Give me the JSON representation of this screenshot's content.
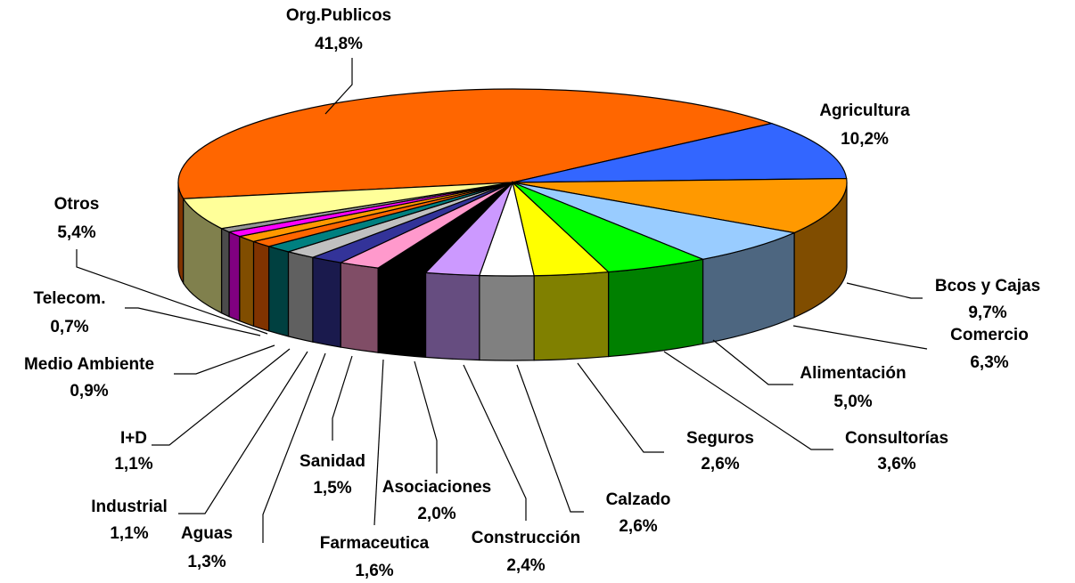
{
  "chart_data": {
    "type": "pie3d",
    "categories": [
      "Org.Publicos",
      "Agricultura",
      "Bcos y Cajas",
      "Comercio",
      "Alimentación",
      "Consultorías",
      "Seguros",
      "Calzado",
      "Construcción",
      "Asociaciones",
      "Farmaceutica",
      "Sanidad",
      "Aguas",
      "Industrial",
      "I+D",
      "Medio Ambiente",
      "Telecom.",
      "Otros"
    ],
    "values": [
      41.8,
      10.2,
      9.7,
      6.3,
      5.0,
      3.6,
      2.6,
      2.6,
      2.4,
      2.0,
      1.6,
      1.5,
      1.3,
      1.1,
      1.1,
      0.9,
      0.7,
      5.4
    ],
    "value_labels": [
      "41,8%",
      "10,2%",
      "9,7%",
      "6,3%",
      "5,0%",
      "3,6%",
      "2,6%",
      "2,6%",
      "2,4%",
      "2,0%",
      "1,6%",
      "1,5%",
      "1,3%",
      "1,1%",
      "1,1%",
      "0,9%",
      "0,7%",
      "5,4%"
    ],
    "colors": [
      "#FF6600",
      "#3366FF",
      "#FF9900",
      "#99CCFF",
      "#00FF00",
      "#FFFF00",
      "#FFFFFF",
      "#CC99FF",
      "#000000",
      "#FF99CC",
      "#333399",
      "#C0C0C0",
      "#008080",
      "#FF6600",
      "#FF9900",
      "#FF00FF",
      "#969696",
      "#FFFF99"
    ]
  }
}
